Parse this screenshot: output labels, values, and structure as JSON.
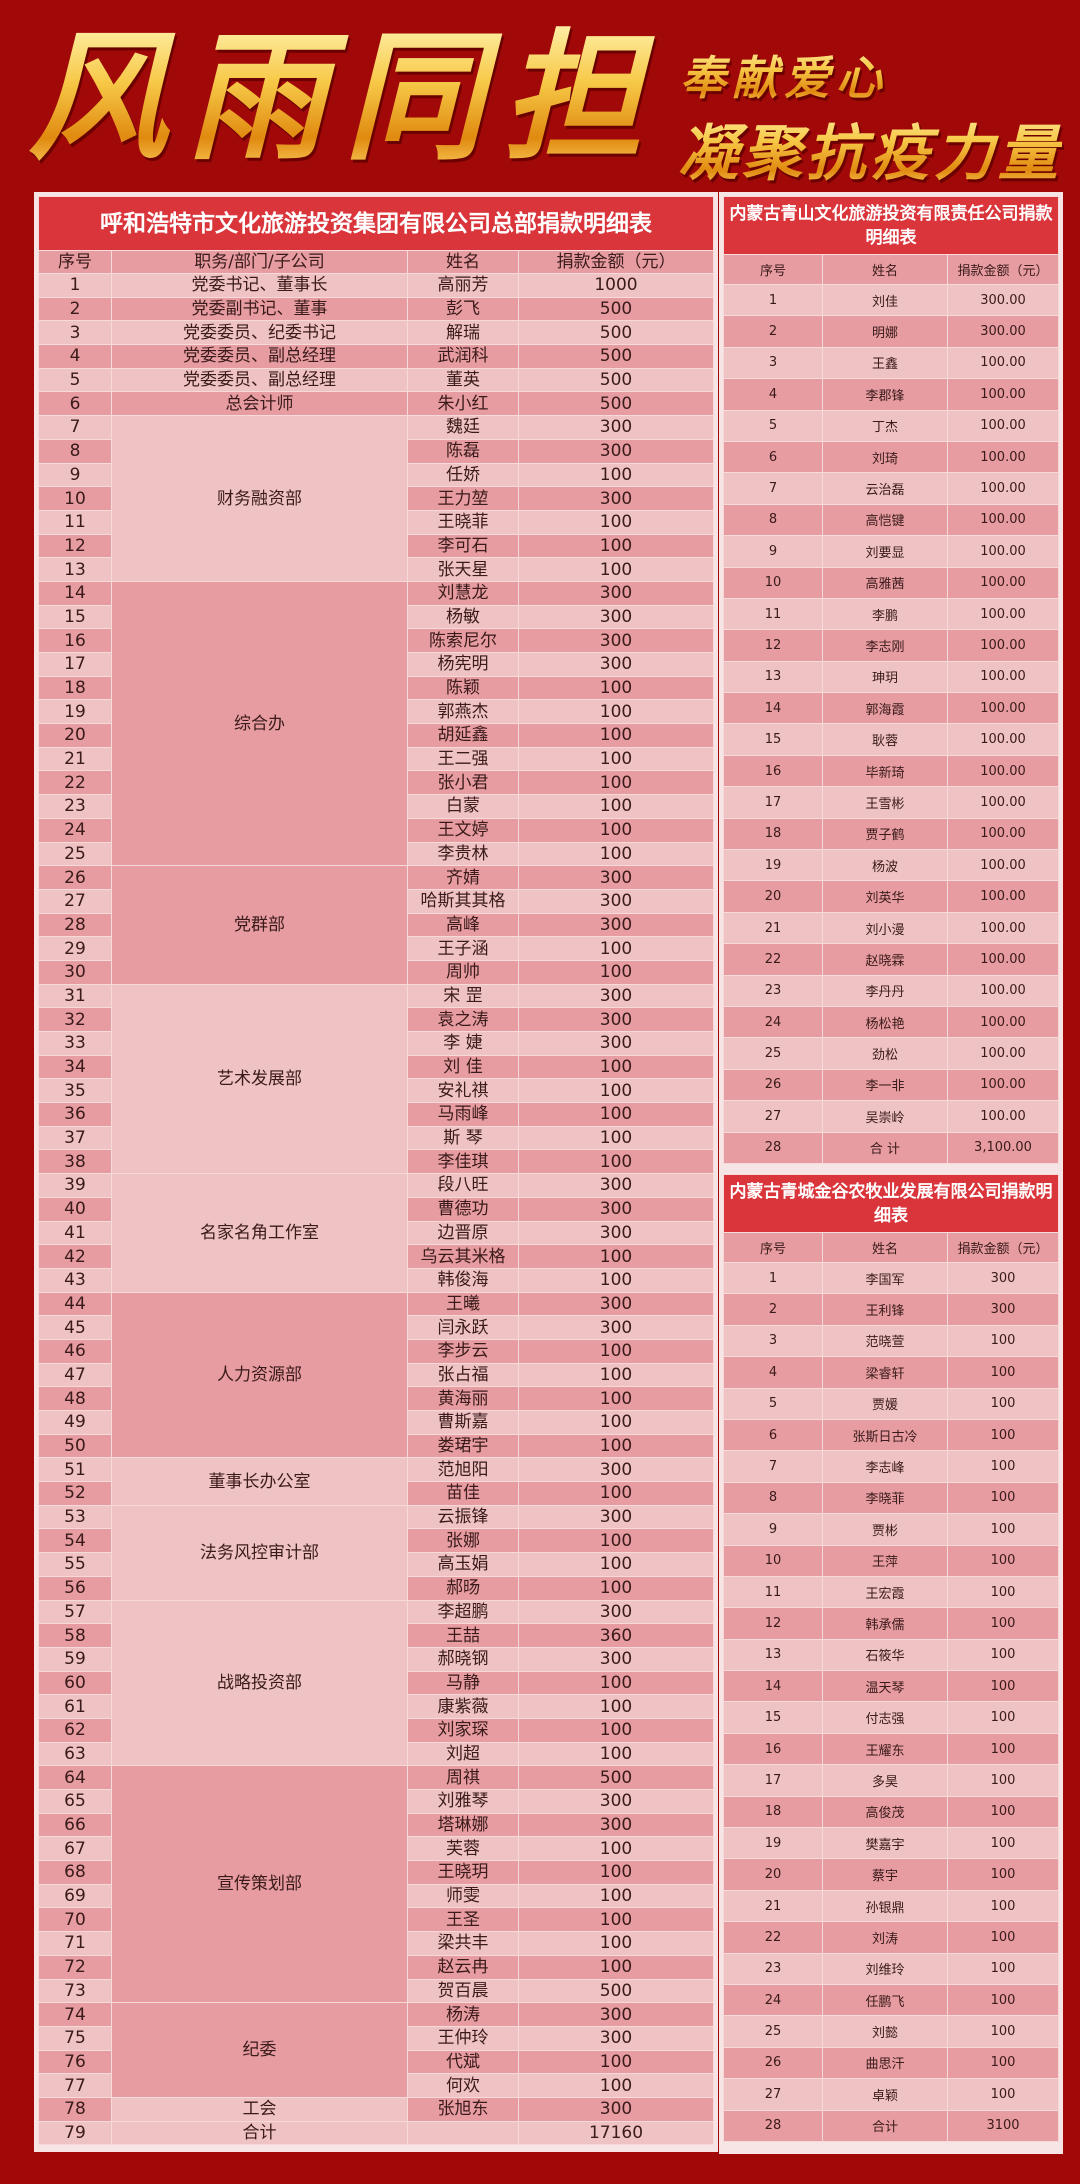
{
  "banner": {
    "main": "风雨同担",
    "line1": "奉献爱心",
    "line2": "凝聚抗疫力量"
  },
  "colors": {
    "background": "#a10808",
    "title_bar": "#d9353b",
    "row_light": "#efc3c4",
    "row_dark": "#e69ca0",
    "headline_gold": "#f7c948"
  },
  "hq": {
    "title": "呼和浩特市文化旅游投资集团有限公司总部捐款明细表",
    "headers": [
      "序号",
      "职务/部门/子公司",
      "姓名",
      "捐款金额（元）"
    ],
    "groups": [
      {
        "dept": "党委书记、董事长",
        "shade": "l",
        "rows": [
          [
            "1",
            "高丽芳",
            "1000"
          ]
        ]
      },
      {
        "dept": "党委副书记、董事",
        "shade": "d",
        "rows": [
          [
            "2",
            "彭飞",
            "500"
          ]
        ]
      },
      {
        "dept": "党委委员、纪委书记",
        "shade": "l",
        "rows": [
          [
            "3",
            "解瑞",
            "500"
          ]
        ]
      },
      {
        "dept": "党委委员、副总经理",
        "shade": "d",
        "rows": [
          [
            "4",
            "武润科",
            "500"
          ]
        ]
      },
      {
        "dept": "党委委员、副总经理",
        "shade": "l",
        "rows": [
          [
            "5",
            "董英",
            "500"
          ]
        ]
      },
      {
        "dept": "总会计师",
        "shade": "d",
        "rows": [
          [
            "6",
            "朱小红",
            "500"
          ]
        ]
      },
      {
        "dept": "财务融资部",
        "shade": "l",
        "rows": [
          [
            "7",
            "魏廷",
            "300"
          ],
          [
            "8",
            "陈磊",
            "300"
          ],
          [
            "9",
            "任娇",
            "100"
          ],
          [
            "10",
            "王力堃",
            "300"
          ],
          [
            "11",
            "王晓菲",
            "100"
          ],
          [
            "12",
            "李可石",
            "100"
          ],
          [
            "13",
            "张天星",
            "100"
          ]
        ]
      },
      {
        "dept": "综合办",
        "shade": "d",
        "rows": [
          [
            "14",
            "刘慧龙",
            "300"
          ],
          [
            "15",
            "杨敏",
            "300"
          ],
          [
            "16",
            "陈索尼尔",
            "300"
          ],
          [
            "17",
            "杨宪明",
            "300"
          ],
          [
            "18",
            "陈颖",
            "100"
          ],
          [
            "19",
            "郭燕杰",
            "100"
          ],
          [
            "20",
            "胡延鑫",
            "100"
          ],
          [
            "21",
            "王二强",
            "100"
          ],
          [
            "22",
            "张小君",
            "100"
          ],
          [
            "23",
            "白蒙",
            "100"
          ],
          [
            "24",
            "王文婷",
            "100"
          ],
          [
            "25",
            "李贵林",
            "100"
          ]
        ]
      },
      {
        "dept": "党群部",
        "shade": "d",
        "rows": [
          [
            "26",
            "齐婧",
            "300"
          ],
          [
            "27",
            "哈斯其其格",
            "300"
          ],
          [
            "28",
            "高峰",
            "300"
          ],
          [
            "29",
            "王子涵",
            "100"
          ],
          [
            "30",
            "周帅",
            "100"
          ]
        ]
      },
      {
        "dept": "艺术发展部",
        "shade": "l",
        "rows": [
          [
            "31",
            "宋 罡",
            "300"
          ],
          [
            "32",
            "袁之涛",
            "300"
          ],
          [
            "33",
            "李 婕",
            "300"
          ],
          [
            "34",
            "刘 佳",
            "100"
          ],
          [
            "35",
            "安礼祺",
            "100"
          ],
          [
            "36",
            "马雨峰",
            "100"
          ],
          [
            "37",
            "斯 琴",
            "100"
          ],
          [
            "38",
            "李佳琪",
            "100"
          ]
        ]
      },
      {
        "dept": "名家名角工作室",
        "shade": "l",
        "rows": [
          [
            "39",
            "段八旺",
            "300"
          ],
          [
            "40",
            "曹德功",
            "300"
          ],
          [
            "41",
            "边晋原",
            "300"
          ],
          [
            "42",
            "乌云其米格",
            "100"
          ],
          [
            "43",
            "韩俊海",
            "100"
          ]
        ]
      },
      {
        "dept": "人力资源部",
        "shade": "d",
        "rows": [
          [
            "44",
            "王曦",
            "300"
          ],
          [
            "45",
            "闫永跃",
            "300"
          ],
          [
            "46",
            "李步云",
            "100"
          ],
          [
            "47",
            "张占福",
            "100"
          ],
          [
            "48",
            "黄海丽",
            "100"
          ],
          [
            "49",
            "曹斯嘉",
            "100"
          ],
          [
            "50",
            "娄珺宇",
            "100"
          ]
        ]
      },
      {
        "dept": "董事长办公室",
        "shade": "l",
        "rows": [
          [
            "51",
            "范旭阳",
            "300"
          ],
          [
            "52",
            "苗佳",
            "100"
          ]
        ]
      },
      {
        "dept": "法务风控审计部",
        "shade": "l",
        "rows": [
          [
            "53",
            "云振锋",
            "300"
          ],
          [
            "54",
            "张娜",
            "100"
          ],
          [
            "55",
            "高玉娟",
            "100"
          ],
          [
            "56",
            "郝旸",
            "100"
          ]
        ]
      },
      {
        "dept": "战略投资部",
        "shade": "l",
        "rows": [
          [
            "57",
            "李超鹏",
            "300"
          ],
          [
            "58",
            "王喆",
            "360"
          ],
          [
            "59",
            "郝晓钢",
            "300"
          ],
          [
            "60",
            "马静",
            "100"
          ],
          [
            "61",
            "康紫薇",
            "100"
          ],
          [
            "62",
            "刘家琛",
            "100"
          ],
          [
            "63",
            "刘超",
            "100"
          ]
        ]
      },
      {
        "dept": "宣传策划部",
        "shade": "d",
        "rows": [
          [
            "64",
            "周祺",
            "500"
          ],
          [
            "65",
            "刘雅琴",
            "300"
          ],
          [
            "66",
            "塔琳娜",
            "300"
          ],
          [
            "67",
            "芙蓉",
            "100"
          ],
          [
            "68",
            "王晓玥",
            "100"
          ],
          [
            "69",
            "师雯",
            "100"
          ],
          [
            "70",
            "王圣",
            "100"
          ],
          [
            "71",
            "梁共丰",
            "100"
          ],
          [
            "72",
            "赵云冉",
            "100"
          ],
          [
            "73",
            "贺百晨",
            "500"
          ]
        ]
      },
      {
        "dept": "纪委",
        "shade": "d",
        "rows": [
          [
            "74",
            "杨涛",
            "300"
          ],
          [
            "75",
            "王仲玲",
            "300"
          ],
          [
            "76",
            "代斌",
            "100"
          ],
          [
            "77",
            "何欢",
            "100"
          ]
        ]
      },
      {
        "dept": "工会",
        "shade": "l",
        "rows": [
          [
            "78",
            "张旭东",
            "300"
          ]
        ]
      },
      {
        "dept": "合计",
        "shade": "l",
        "rows": [
          [
            "79",
            "",
            "17160"
          ]
        ]
      }
    ]
  },
  "qingshan": {
    "title": "内蒙古青山文化旅游投资有限责任公司捐款明细表",
    "headers": [
      "序号",
      "姓名",
      "捐款金额（元）"
    ],
    "rows": [
      [
        "1",
        "刘佳",
        "300.00"
      ],
      [
        "2",
        "明娜",
        "300.00"
      ],
      [
        "3",
        "王鑫",
        "100.00"
      ],
      [
        "4",
        "李郡锋",
        "100.00"
      ],
      [
        "5",
        "丁杰",
        "100.00"
      ],
      [
        "6",
        "刘琦",
        "100.00"
      ],
      [
        "7",
        "云治磊",
        "100.00"
      ],
      [
        "8",
        "高恺键",
        "100.00"
      ],
      [
        "9",
        "刘要显",
        "100.00"
      ],
      [
        "10",
        "高雅茜",
        "100.00"
      ],
      [
        "11",
        "李鹏",
        "100.00"
      ],
      [
        "12",
        "李志刚",
        "100.00"
      ],
      [
        "13",
        "珅玥",
        "100.00"
      ],
      [
        "14",
        "郭海霞",
        "100.00"
      ],
      [
        "15",
        "耿蓉",
        "100.00"
      ],
      [
        "16",
        "毕新琦",
        "100.00"
      ],
      [
        "17",
        "王雪彬",
        "100.00"
      ],
      [
        "18",
        "贾子鹤",
        "100.00"
      ],
      [
        "19",
        "杨波",
        "100.00"
      ],
      [
        "20",
        "刘英华",
        "100.00"
      ],
      [
        "21",
        "刘小漫",
        "100.00"
      ],
      [
        "22",
        "赵晓霖",
        "100.00"
      ],
      [
        "23",
        "李丹丹",
        "100.00"
      ],
      [
        "24",
        "杨松艳",
        "100.00"
      ],
      [
        "25",
        "劲松",
        "100.00"
      ],
      [
        "26",
        "李一非",
        "100.00"
      ],
      [
        "27",
        "吴崇岭",
        "100.00"
      ],
      [
        "28",
        "合 计",
        "3,100.00"
      ]
    ]
  },
  "jingu": {
    "title": "内蒙古青城金谷农牧业发展有限公司捐款明细表",
    "headers": [
      "序号",
      "姓名",
      "捐款金额（元）"
    ],
    "rows": [
      [
        "1",
        "李国军",
        "300"
      ],
      [
        "2",
        "王利锋",
        "300"
      ],
      [
        "3",
        "范晓萱",
        "100"
      ],
      [
        "4",
        "梁睿轩",
        "100"
      ],
      [
        "5",
        "贾媛",
        "100"
      ],
      [
        "6",
        "张斯日古冷",
        "100"
      ],
      [
        "7",
        "李志峰",
        "100"
      ],
      [
        "8",
        "李晓菲",
        "100"
      ],
      [
        "9",
        "贾彬",
        "100"
      ],
      [
        "10",
        "王萍",
        "100"
      ],
      [
        "11",
        "王宏霞",
        "100"
      ],
      [
        "12",
        "韩承儒",
        "100"
      ],
      [
        "13",
        "石筱华",
        "100"
      ],
      [
        "14",
        "温天琴",
        "100"
      ],
      [
        "15",
        "付志强",
        "100"
      ],
      [
        "16",
        "王耀东",
        "100"
      ],
      [
        "17",
        "多昊",
        "100"
      ],
      [
        "18",
        "高俊茂",
        "100"
      ],
      [
        "19",
        "樊嘉宇",
        "100"
      ],
      [
        "20",
        "蔡宇",
        "100"
      ],
      [
        "21",
        "孙银鼎",
        "100"
      ],
      [
        "22",
        "刘涛",
        "100"
      ],
      [
        "23",
        "刘维玲",
        "100"
      ],
      [
        "24",
        "任鹏飞",
        "100"
      ],
      [
        "25",
        "刘懿",
        "100"
      ],
      [
        "26",
        "曲思汗",
        "100"
      ],
      [
        "27",
        "卓颖",
        "100"
      ],
      [
        "28",
        "合计",
        "3100"
      ]
    ]
  }
}
